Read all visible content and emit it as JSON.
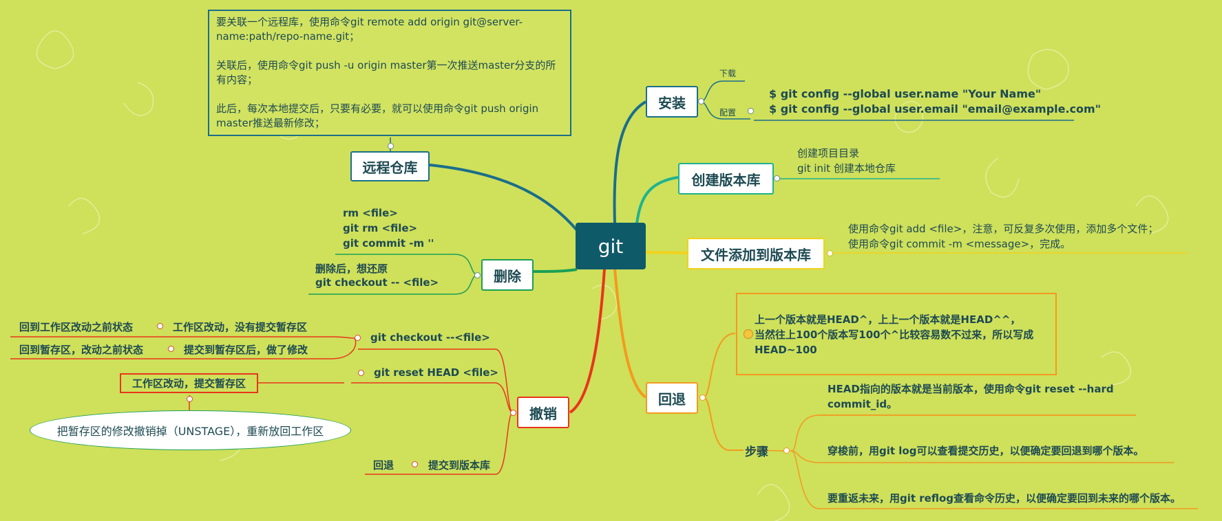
{
  "central": {
    "label": "git"
  },
  "colors": {
    "background": "#cfe05b",
    "central_fill": "#0f5a68",
    "teal": "#1a6e8a",
    "green": "#1a9f55",
    "mint": "#1fb38e",
    "yellow": "#f2d21b",
    "orange": "#f39a1e",
    "red": "#e8351b"
  },
  "branches": {
    "install": {
      "label": "安装",
      "download_label": "下载",
      "config_label": "配置",
      "config_line1": "$ git config --global user.name \"Your Name\"",
      "config_line2": "$ git config --global user.email \"email@example.com\""
    },
    "create_repo": {
      "label": "创建版本库",
      "line1": "创建项目目录",
      "line2": "git init 创建本地仓库"
    },
    "add_files": {
      "label": "文件添加到版本库",
      "line1": "使用命令git add <file>，注意，可反复多次使用，添加多个文件；",
      "line2": "使用命令git commit -m <message>，完成。"
    },
    "remote": {
      "label": "远程仓库",
      "note_p1": "要关联一个远程库，使用命令git remote add origin git@server-name:path/repo-name.git；",
      "note_p2": "关联后，使用命令git push -u origin master第一次推送master分支的所有内容；",
      "note_p3": "此后，每次本地提交后，只要有必要，就可以使用命令git push origin master推送最新修改；"
    },
    "delete": {
      "label": "删除",
      "cmd1": "rm <file>",
      "cmd2": "git rm  <file>",
      "cmd3": "git commit -m ''",
      "restore1": "删除后，想还原",
      "restore2": "git checkout -- <file>"
    },
    "undo": {
      "label": "撤销",
      "checkout_label": "git checkout   --<file>",
      "case1_condition": "工作区改动，没有提交暂存区",
      "case1_result": "回到工作区改动之前状态",
      "case2_condition": "提交到暂存区后，做了修改",
      "case2_result": "回到暂存区，改动之前状态",
      "reset_label": "git reset HEAD <file>",
      "reset_condition": "工作区改动，提交暂存区",
      "reset_result": "把暂存区的修改撤销掉（UNSTAGE），重新放回工作区",
      "rollback_label": "回退",
      "rollback_condition": "提交到版本库"
    },
    "rollback": {
      "label": "回退",
      "note_line1": "上一个版本就是HEAD^，上上一个版本就是HEAD^^，",
      "note_line2": "当然往上100个版本写100个^比较容易数不过来，所以写成",
      "note_line3": "HEAD~100",
      "steps_label": "步骤",
      "step1_line1": "HEAD指向的版本就是当前版本，使用命令git reset --hard",
      "step1_line2": "commit_id。",
      "step2": "穿梭前，用git log可以查看提交历史，以便确定要回退到哪个版本。",
      "step3": "要重返未来，用git reflog查看命令历史，以便确定要回到未来的哪个版本。"
    }
  }
}
